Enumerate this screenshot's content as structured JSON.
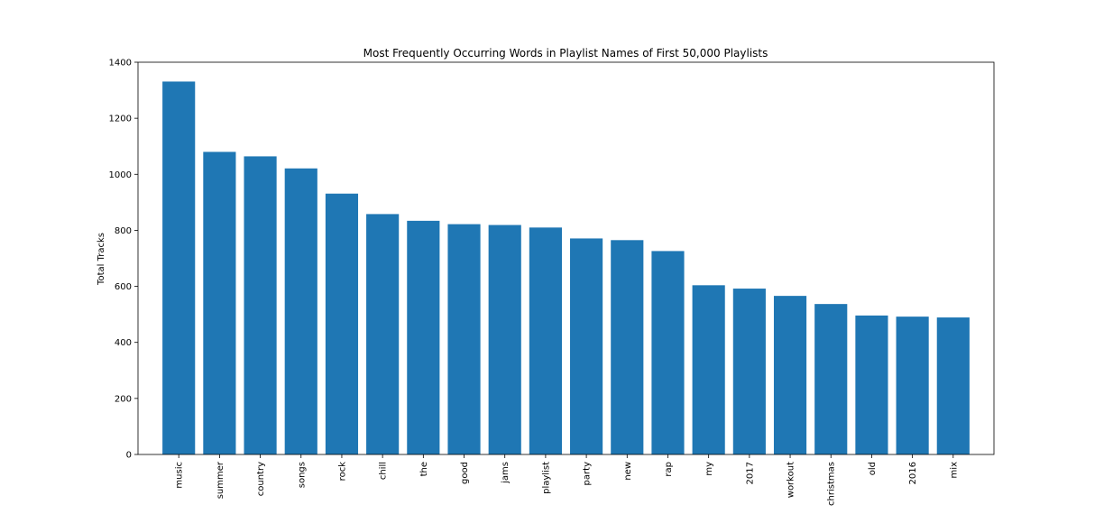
{
  "chart_data": {
    "type": "bar",
    "title": "Most Frequently Occurring Words in Playlist Names of First 50,000 Playlists",
    "xlabel": "",
    "ylabel": "Total Tracks",
    "ylim": [
      0,
      1400
    ],
    "yticks": [
      0,
      200,
      400,
      600,
      800,
      1000,
      1200,
      1400
    ],
    "grid": false,
    "legend": "none",
    "bar_color": "#1f77b4",
    "categories": [
      "music",
      "summer",
      "country",
      "songs",
      "rock",
      "chill",
      "the",
      "good",
      "jams",
      "playlist",
      "party",
      "new",
      "rap",
      "my",
      "2017",
      "workout",
      "christmas",
      "old",
      "2016",
      "mix"
    ],
    "values": [
      1331,
      1080,
      1064,
      1021,
      931,
      858,
      834,
      822,
      819,
      810,
      771,
      765,
      726,
      604,
      592,
      566,
      537,
      496,
      492,
      489
    ]
  }
}
